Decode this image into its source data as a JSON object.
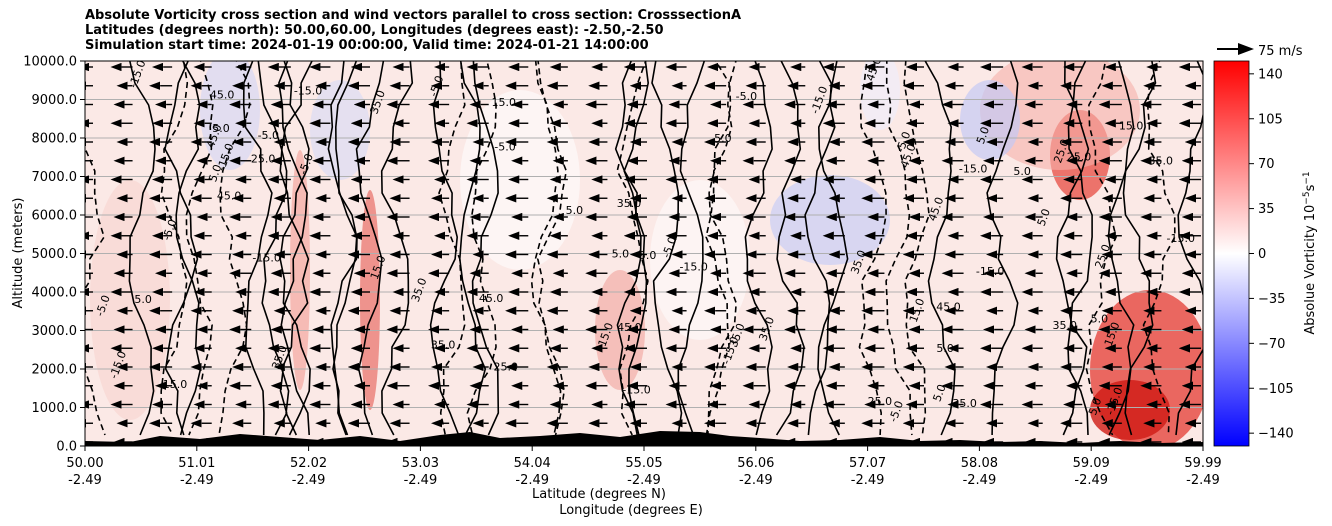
{
  "title_lines": [
    "Absolute Vorticity cross section and wind vectors parallel to cross section: CrosssectionA",
    "Latitudes (degrees north): 50.00,60.00, Longitudes (degrees east): -2.50,-2.50",
    "Simulation start time: 2024-01-19 00:00:00, Valid time: 2024-01-21 14:00:00"
  ],
  "wind_key_label": "75 m/s",
  "chart_data": {
    "type": "heatmap",
    "ylabel": "Altitude (meters)",
    "xlabel_lines": [
      "Latitude (degrees N)",
      "Longitude (degrees E)"
    ],
    "ylim": [
      0,
      10000
    ],
    "y_ticks": [
      "0.0",
      "1000.0",
      "2000.0",
      "3000.0",
      "4000.0",
      "5000.0",
      "6000.0",
      "7000.0",
      "8000.0",
      "9000.0",
      "10000.0"
    ],
    "x_ticks": [
      {
        "lat": "50.00",
        "lon": "-2.49"
      },
      {
        "lat": "51.01",
        "lon": "-2.49"
      },
      {
        "lat": "52.02",
        "lon": "-2.49"
      },
      {
        "lat": "53.03",
        "lon": "-2.49"
      },
      {
        "lat": "54.04",
        "lon": "-2.49"
      },
      {
        "lat": "55.05",
        "lon": "-2.49"
      },
      {
        "lat": "56.06",
        "lon": "-2.49"
      },
      {
        "lat": "57.07",
        "lon": "-2.49"
      },
      {
        "lat": "58.08",
        "lon": "-2.49"
      },
      {
        "lat": "59.09",
        "lon": "-2.49"
      },
      {
        "lat": "59.99",
        "lon": "-2.49"
      }
    ],
    "colorbar": {
      "label": "Absolue Vorticity 10",
      "label_exp": "−5",
      "label_unit": "s",
      "label_unit_exp": "−1",
      "range": [
        -150,
        150
      ],
      "ticks": [
        "140",
        "105",
        "70",
        "35",
        "0",
        "−35",
        "−70",
        "−105",
        "−140"
      ],
      "colors": [
        "#0000ff",
        "#ffffff",
        "#ff0000"
      ]
    },
    "contour_labels": [
      "5.0",
      "-5.0",
      "15.0",
      "25.0",
      "35.0",
      "45.0",
      "-15.0"
    ],
    "grid": true
  }
}
